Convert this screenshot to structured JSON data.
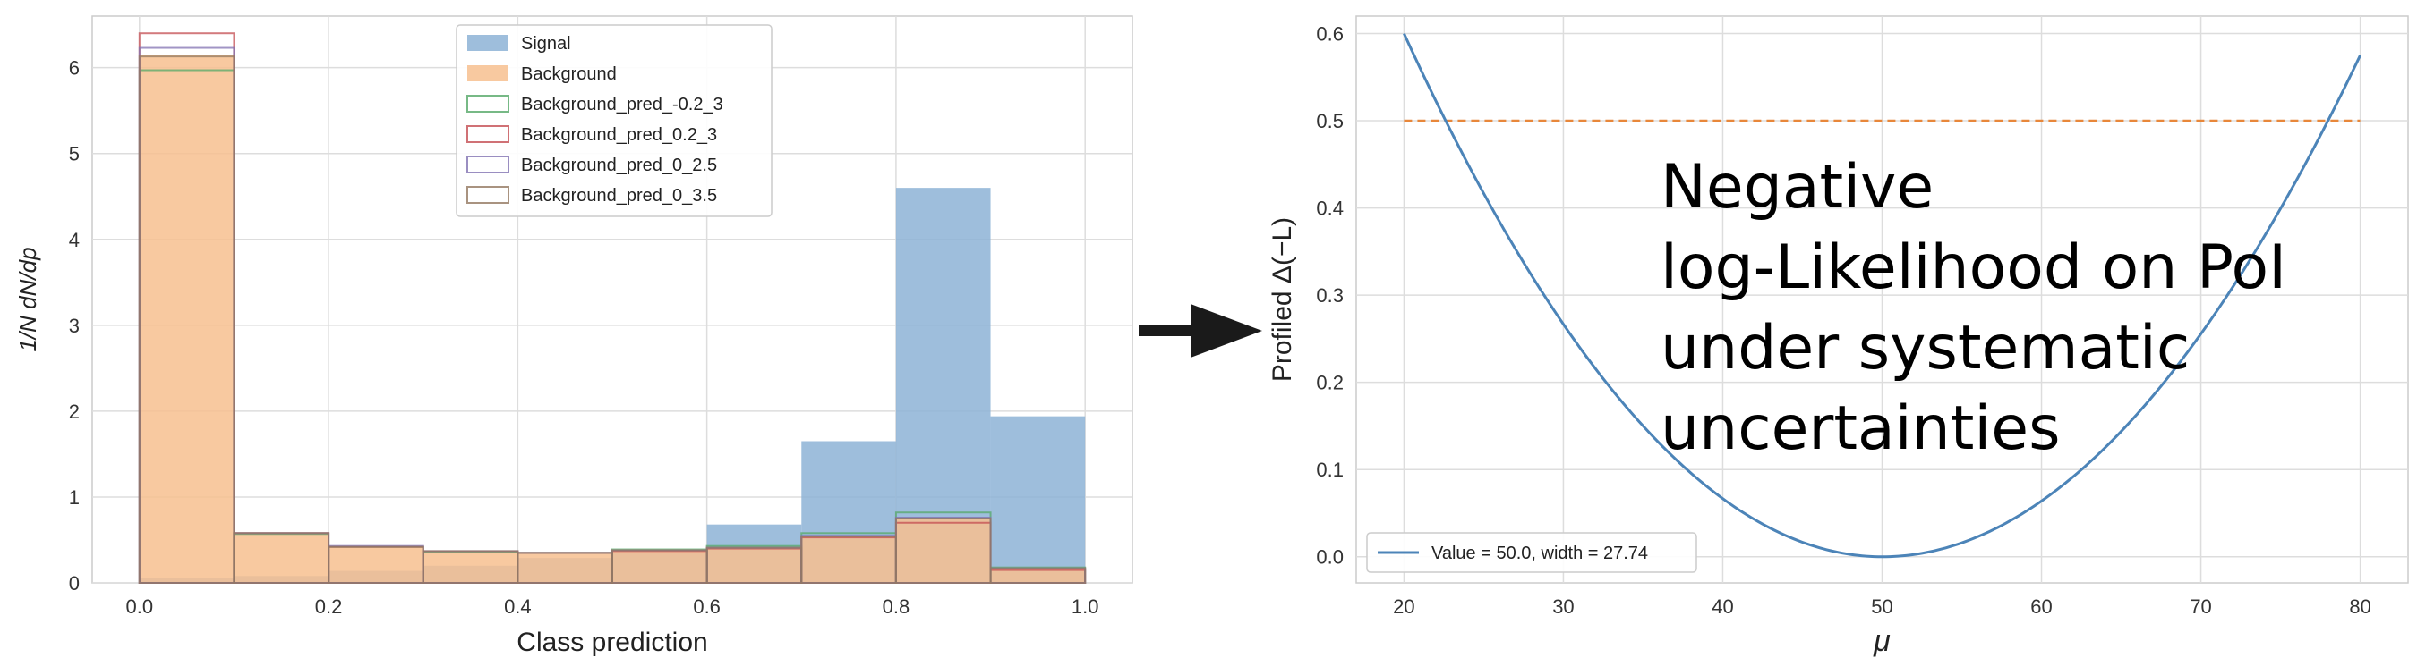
{
  "chart_data": [
    {
      "type": "bar",
      "xlabel": "Class prediction",
      "ylabel": "1/N dN/dp",
      "xlim": [
        -0.05,
        1.05
      ],
      "ylim": [
        0,
        6.6
      ],
      "xticks": [
        "0.0",
        "0.2",
        "0.4",
        "0.6",
        "0.8",
        "1.0"
      ],
      "yticks": [
        "0",
        "1",
        "2",
        "3",
        "4",
        "5",
        "6"
      ],
      "grid": true,
      "legend_position": "top-center",
      "bin_edges": [
        0.0,
        0.1,
        0.2,
        0.3,
        0.4,
        0.5,
        0.6,
        0.7,
        0.8,
        0.9,
        1.0
      ],
      "series": [
        {
          "name": "Signal",
          "style": "filled",
          "color": "#8db3d6",
          "values": [
            0.06,
            0.08,
            0.14,
            0.2,
            0.29,
            0.35,
            0.68,
            1.65,
            4.6,
            1.94
          ]
        },
        {
          "name": "Background",
          "style": "filled",
          "color": "#f7c08f",
          "values": [
            6.15,
            0.58,
            0.43,
            0.37,
            0.35,
            0.38,
            0.41,
            0.55,
            0.75,
            0.17
          ]
        },
        {
          "name": "Background_pred_-0.2_3",
          "style": "step",
          "color": "#55a868",
          "values": [
            5.97,
            0.57,
            0.42,
            0.36,
            0.35,
            0.39,
            0.43,
            0.58,
            0.82,
            0.18
          ]
        },
        {
          "name": "Background_pred_0.2_3",
          "style": "step",
          "color": "#c44e52",
          "values": [
            6.4,
            0.58,
            0.42,
            0.37,
            0.35,
            0.37,
            0.4,
            0.53,
            0.7,
            0.15
          ]
        },
        {
          "name": "Background_pred_0_2.5",
          "style": "step",
          "color": "#8172b2",
          "values": [
            6.23,
            0.58,
            0.43,
            0.37,
            0.35,
            0.38,
            0.41,
            0.55,
            0.76,
            0.17
          ]
        },
        {
          "name": "Background_pred_0_3.5",
          "style": "step",
          "color": "#937860",
          "values": [
            6.13,
            0.58,
            0.42,
            0.37,
            0.35,
            0.38,
            0.41,
            0.54,
            0.75,
            0.17
          ]
        }
      ]
    },
    {
      "type": "line",
      "xlabel": "μ",
      "ylabel": "Profiled Δ(−L)",
      "xlim": [
        17,
        83
      ],
      "ylim": [
        -0.03,
        0.62
      ],
      "xticks": [
        20,
        30,
        40,
        50,
        60,
        70,
        80
      ],
      "yticks": [
        "0.0",
        "0.1",
        "0.2",
        "0.3",
        "0.4",
        "0.5",
        "0.6"
      ],
      "grid": true,
      "legend_position": "bottom-left",
      "series": [
        {
          "name": "Value = 50.0, width = 27.74",
          "color": "#4c84b8",
          "curve": "parabola",
          "vertex": [
            50,
            0.0
          ],
          "x": [
            20,
            80
          ],
          "y_endpoints": [
            0.6,
            0.575
          ]
        }
      ],
      "reference_line": {
        "y": 0.5,
        "color": "#e8873a",
        "style": "dashed",
        "x": [
          20,
          80
        ]
      }
    }
  ],
  "annotation_lines": [
    "Negative",
    "log-Likelihood on PoI",
    "under systematic",
    "uncertainties"
  ],
  "arrow": {
    "icon": "right-arrow-icon",
    "color": "#1a1a1a"
  }
}
